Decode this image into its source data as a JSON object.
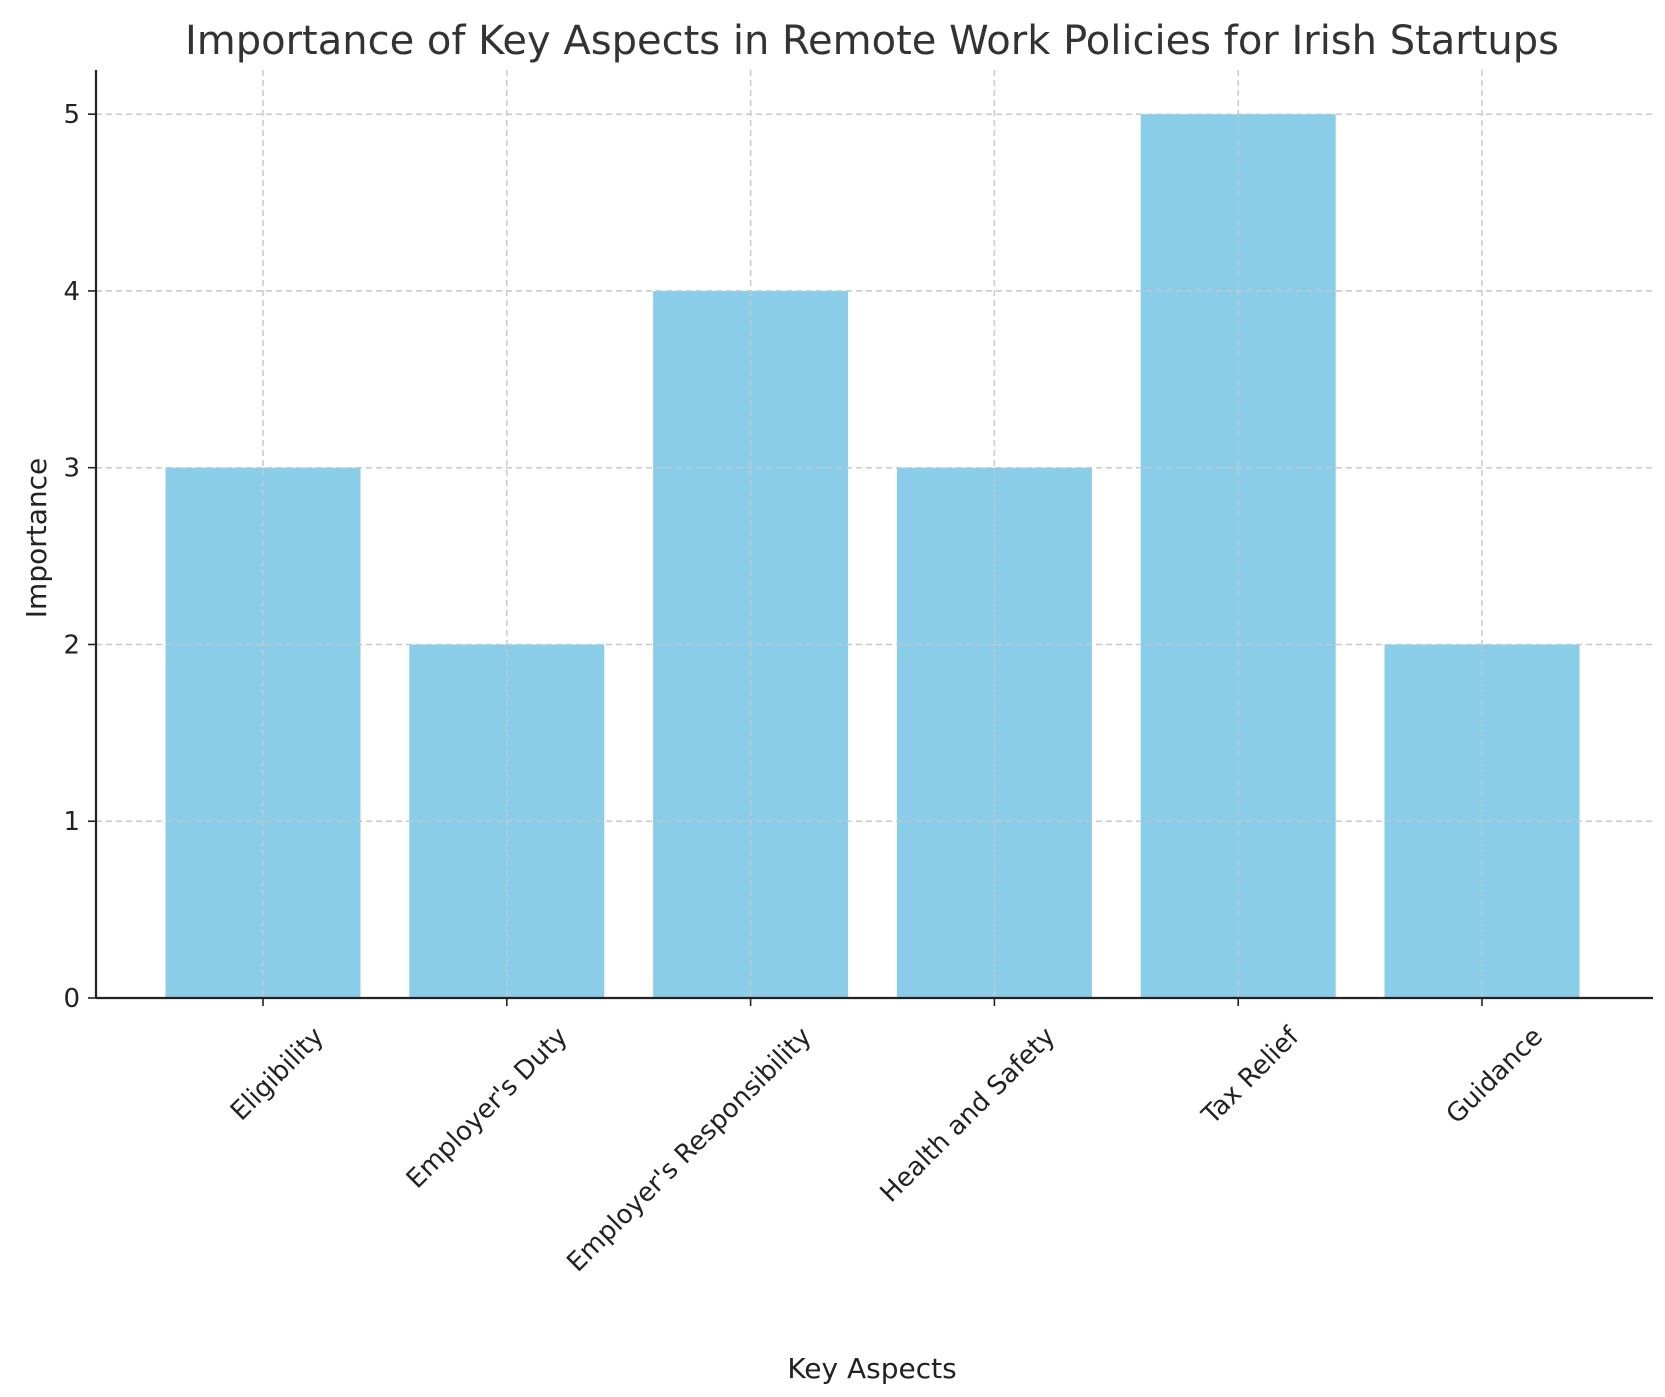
{
  "chart_data": {
    "type": "bar",
    "title": "Importance of Key Aspects in Remote Work Policies for Irish Startups",
    "xlabel": "Key Aspects",
    "ylabel": "Importance",
    "categories": [
      "Eligibility",
      "Employer's Duty",
      "Employer's Responsibility",
      "Health and Safety",
      "Tax Relief",
      "Guidance"
    ],
    "values": [
      3,
      2,
      4,
      3,
      5,
      2
    ],
    "ylim": [
      0,
      5.25
    ],
    "yticks": [
      0,
      1,
      2,
      3,
      4,
      5
    ],
    "grid": true,
    "bar_color": "#89CDE9"
  }
}
